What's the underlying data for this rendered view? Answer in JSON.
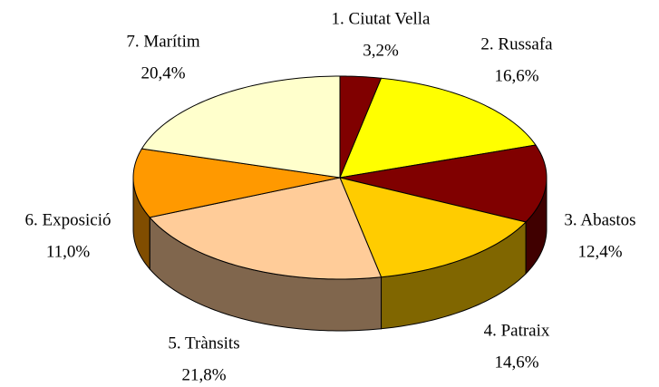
{
  "chart_data": {
    "type": "pie",
    "categories": [
      "1. Ciutat Vella",
      "2. Russafa",
      "3. Abastos",
      "4. Patraix",
      "5. Trànsits",
      "6. Exposició",
      "7. Marítim"
    ],
    "values": [
      3.2,
      16.6,
      12.4,
      14.6,
      21.8,
      11.0,
      20.4
    ],
    "value_labels": [
      "3,2%",
      "16,6%",
      "12,4%",
      "14,6%",
      "21,8%",
      "11,0%",
      "20,4%"
    ],
    "colors": [
      "#800000",
      "#ffff00",
      "#800000",
      "#ffcc00",
      "#ffcc99",
      "#ff9900",
      "#ffffcc"
    ]
  }
}
